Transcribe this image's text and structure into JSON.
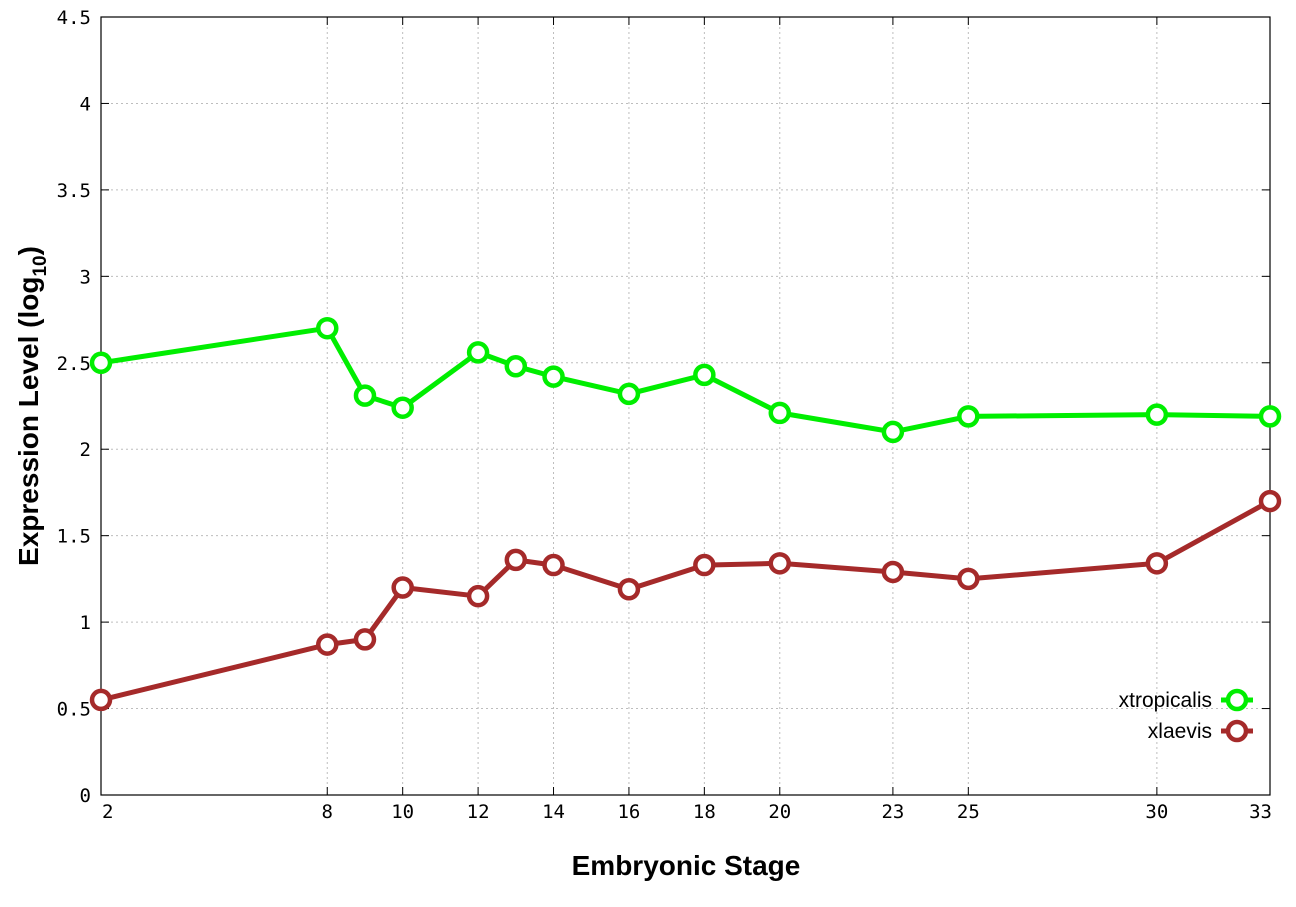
{
  "chart_data": {
    "type": "line",
    "xlabel": "Embryonic Stage",
    "ylabel_main": "Expression Level (log",
    "ylabel_sub": "10",
    "ylabel_close": ")",
    "categories": [
      "2",
      "8",
      "9",
      "10",
      "12",
      "13",
      "14",
      "16",
      "18",
      "20",
      "23",
      "25",
      "30",
      "33"
    ],
    "x_values": [
      2,
      8,
      9,
      10,
      12,
      13,
      14,
      16,
      18,
      20,
      23,
      25,
      30,
      33
    ],
    "x_tick_labels": [
      "2",
      "8",
      "10",
      "12",
      "14",
      "16",
      "18",
      "20",
      "23",
      "25",
      "30",
      "33"
    ],
    "x_tick_values": [
      2,
      8,
      10,
      12,
      14,
      16,
      18,
      20,
      23,
      25,
      30,
      33
    ],
    "x_range": [
      2,
      33
    ],
    "y_range": [
      0,
      4.5
    ],
    "y_ticks": [
      "0",
      "0.5",
      "1",
      "1.5",
      "2",
      "2.5",
      "3",
      "3.5",
      "4",
      "4.5"
    ],
    "y_tick_values": [
      0,
      0.5,
      1,
      1.5,
      2,
      2.5,
      3,
      3.5,
      4,
      4.5
    ],
    "grid": true,
    "legend_position": "bottom-right",
    "series": [
      {
        "name": "xtropicalis",
        "color": "#00ee00",
        "values": [
          2.5,
          2.7,
          2.31,
          2.24,
          2.56,
          2.48,
          2.42,
          2.32,
          2.43,
          2.21,
          2.1,
          2.19,
          2.2,
          2.19
        ]
      },
      {
        "name": "xlaevis",
        "color": "#a52a2a",
        "values": [
          0.55,
          0.87,
          0.9,
          1.2,
          1.15,
          1.36,
          1.33,
          1.19,
          1.33,
          1.34,
          1.29,
          1.25,
          1.34,
          1.7
        ]
      }
    ]
  }
}
